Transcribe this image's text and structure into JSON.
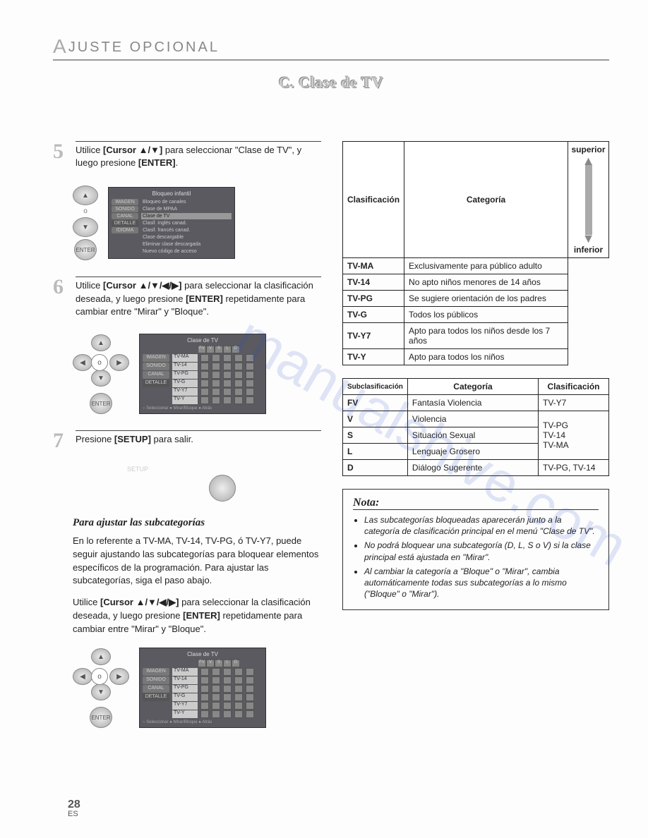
{
  "header": {
    "cap": "A",
    "rest": "JUSTE  OPCIONAL"
  },
  "ribbon": "C. Clase de TV",
  "steps": {
    "s5": {
      "num": "5",
      "text_a": "Utilice ",
      "bold_a": "[Cursor ▲/▼]",
      "text_b": " para seleccionar \"Clase de TV\", y luego presione ",
      "bold_b": "[ENTER]",
      "text_c": "."
    },
    "s6": {
      "num": "6",
      "text_a": "Utilice ",
      "bold_a": "[Cursor ▲/▼/◀/▶]",
      "text_b": " para seleccionar la clasificación deseada, y luego presione ",
      "bold_b": "[ENTER]",
      "text_c": " repetidamente para cambiar entre \"Mirar\" y \"Bloque\"."
    },
    "s7": {
      "num": "7",
      "text_a": "Presione ",
      "bold_a": "[SETUP]",
      "text_b": " para salir."
    }
  },
  "osd5": {
    "title": "Bloqueo infantil",
    "tabs": [
      "IMAGEN",
      "SONIDO",
      "CANAL",
      "DETALLE",
      "IDIOMA"
    ],
    "items": [
      "Bloqueo de canales",
      "Clase de MPAA",
      "Clase de TV",
      "Clasif. inglés canad.",
      "Clasif. francés canad.",
      "Clase descargable",
      "Eliminar clase descargada",
      "Nuevo código de acceso"
    ],
    "hi": 2
  },
  "osd6": {
    "title": "Clase de TV",
    "cols": [
      "FV",
      "V",
      "S",
      "L",
      "D"
    ],
    "rows": [
      "TV-MA",
      "TV-14",
      "TV-PG",
      "TV-G",
      "TV-Y7",
      "TV-Y"
    ],
    "foot": "○ Seleccionar   ● Mirar/Bloque   ● Atrás"
  },
  "subcat": {
    "title": "Para ajustar las subcategorías",
    "p1": "En lo referente a TV-MA, TV-14, TV-PG, ó TV-Y7, puede seguir ajustando las subcategorías para bloquear elementos específicos de la programación. Para ajustar las subcategorías, siga el paso abajo.",
    "p2a": "Utilice ",
    "p2bold1": "[Cursor ▲/▼/◀/▶]",
    "p2b": " para seleccionar la clasificación deseada, y luego presione ",
    "p2bold2": "[ENTER]",
    "p2c": " repetidamente para cambiar entre \"Mirar\" y \"Bloque\"."
  },
  "table1": {
    "h1": "Clasificación",
    "h2": "Categoría",
    "top": "superior",
    "bot": "inferior",
    "rows": [
      {
        "c": "TV-MA",
        "d": "Exclusivamente para público adulto"
      },
      {
        "c": "TV-14",
        "d": "No apto niños menores de 14 años"
      },
      {
        "c": "TV-PG",
        "d": "Se sugiere orientación de los padres"
      },
      {
        "c": "TV-G",
        "d": "Todos los públicos"
      },
      {
        "c": "TV-Y7",
        "d": "Apto para todos los niños desde los 7 años"
      },
      {
        "c": "TV-Y",
        "d": "Apto para todos los niños"
      }
    ]
  },
  "table2": {
    "h1": "Subclasificación",
    "h2": "Categoría",
    "h3": "Clasificación",
    "rows": [
      {
        "c": "FV",
        "d": "Fantasía Violencia",
        "e": "TV-Y7"
      },
      {
        "c": "V",
        "d": "Violencia",
        "e": "TV-PG"
      },
      {
        "c": "S",
        "d": "Situación Sexual",
        "e": "TV-14"
      },
      {
        "c": "L",
        "d": "Lenguaje Grosero",
        "e": "TV-MA"
      },
      {
        "c": "D",
        "d": "Diálogo Sugerente",
        "e": "TV-PG, TV-14"
      }
    ]
  },
  "note": {
    "title": "Nota:",
    "items": [
      "Las subcategorías bloqueadas aparecerán junto a la categoría de clasificación principal en el menú \"Clase de TV\".",
      "No podrá bloquear una subcategoría (D, L, S o V) si la clase principal está ajustada en \"Mirar\".",
      "Al cambiar la categoría a \"Bloque\" o \"Mirar\", cambia automáticamente todas sus subcategorías a lo mismo (\"Bloque\" o \"Mirar\")."
    ]
  },
  "remote": {
    "enter": "ENTER",
    "setup": "SETUP",
    "o": "o"
  },
  "page": {
    "num": "28",
    "lang": "ES"
  },
  "watermark": "manualshive.com"
}
